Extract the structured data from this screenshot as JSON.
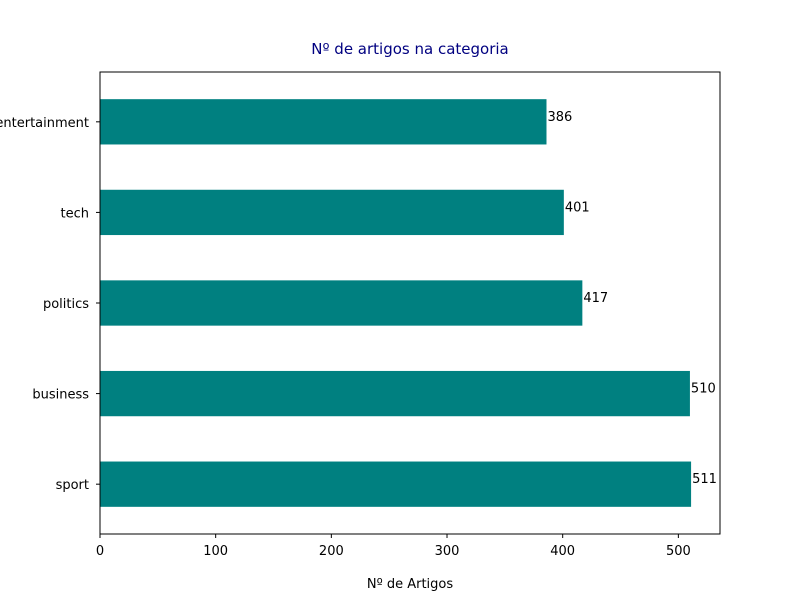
{
  "chart_data": {
    "type": "bar",
    "orientation": "horizontal",
    "title": "Nº de artigos na categoria",
    "xlabel": "Nº de Artigos",
    "ylabel": "",
    "categories": [
      "sport",
      "business",
      "politics",
      "tech",
      "entertainment"
    ],
    "values": [
      511,
      510,
      417,
      401,
      386
    ],
    "xlim": [
      0,
      536
    ],
    "xticks": [
      0,
      100,
      200,
      300,
      400,
      500
    ],
    "grid": false,
    "legend": "none",
    "colors": {
      "bar": "#008080",
      "title": "#000080",
      "axis": "#000000"
    }
  }
}
